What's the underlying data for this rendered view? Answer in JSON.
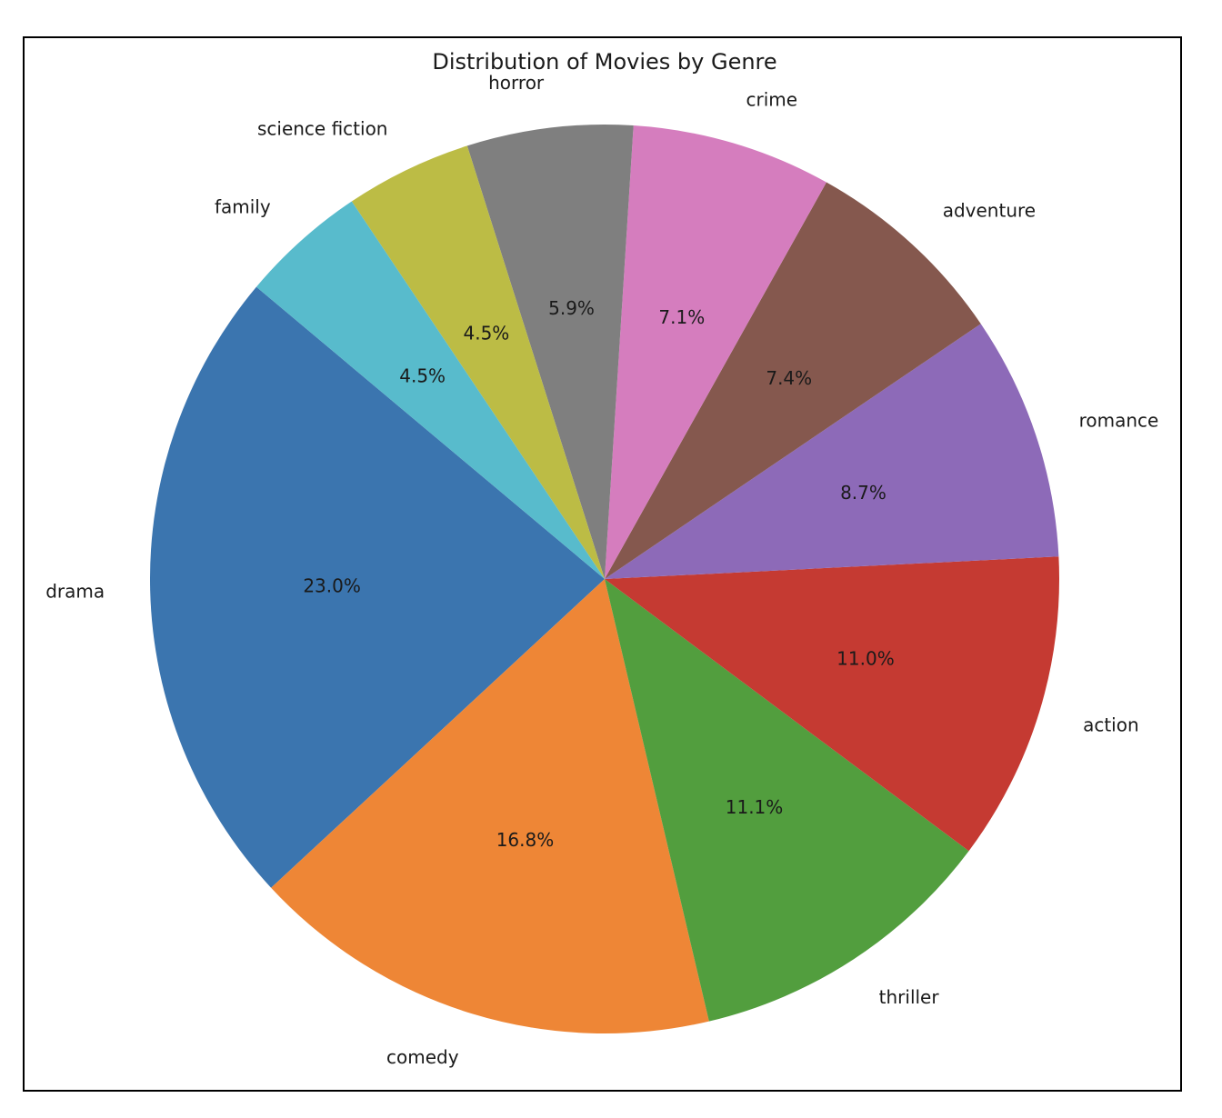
{
  "chart_data": {
    "type": "pie",
    "title": "Distribution of Movies by Genre",
    "slices": [
      {
        "label": "drama",
        "value": 23.0,
        "pct_label": "23.0%",
        "color": "#3b75af"
      },
      {
        "label": "comedy",
        "value": 16.8,
        "pct_label": "16.8%",
        "color": "#ee8636"
      },
      {
        "label": "thriller",
        "value": 11.1,
        "pct_label": "11.1%",
        "color": "#529e3e"
      },
      {
        "label": "action",
        "value": 11.0,
        "pct_label": "11.0%",
        "color": "#c53a32"
      },
      {
        "label": "romance",
        "value": 8.7,
        "pct_label": "8.7%",
        "color": "#8d6ab8"
      },
      {
        "label": "adventure",
        "value": 7.4,
        "pct_label": "7.4%",
        "color": "#85584e"
      },
      {
        "label": "crime",
        "value": 7.1,
        "pct_label": "7.1%",
        "color": "#d57dbe"
      },
      {
        "label": "horror",
        "value": 5.9,
        "pct_label": "5.9%",
        "color": "#7f7f7f"
      },
      {
        "label": "science fiction",
        "value": 4.5,
        "pct_label": "4.5%",
        "color": "#bcbc45"
      },
      {
        "label": "family",
        "value": 4.5,
        "pct_label": "4.5%",
        "color": "#58bbcc"
      }
    ],
    "start_angle_deg": 140,
    "direction": "counterclockwise",
    "legend": "none"
  }
}
